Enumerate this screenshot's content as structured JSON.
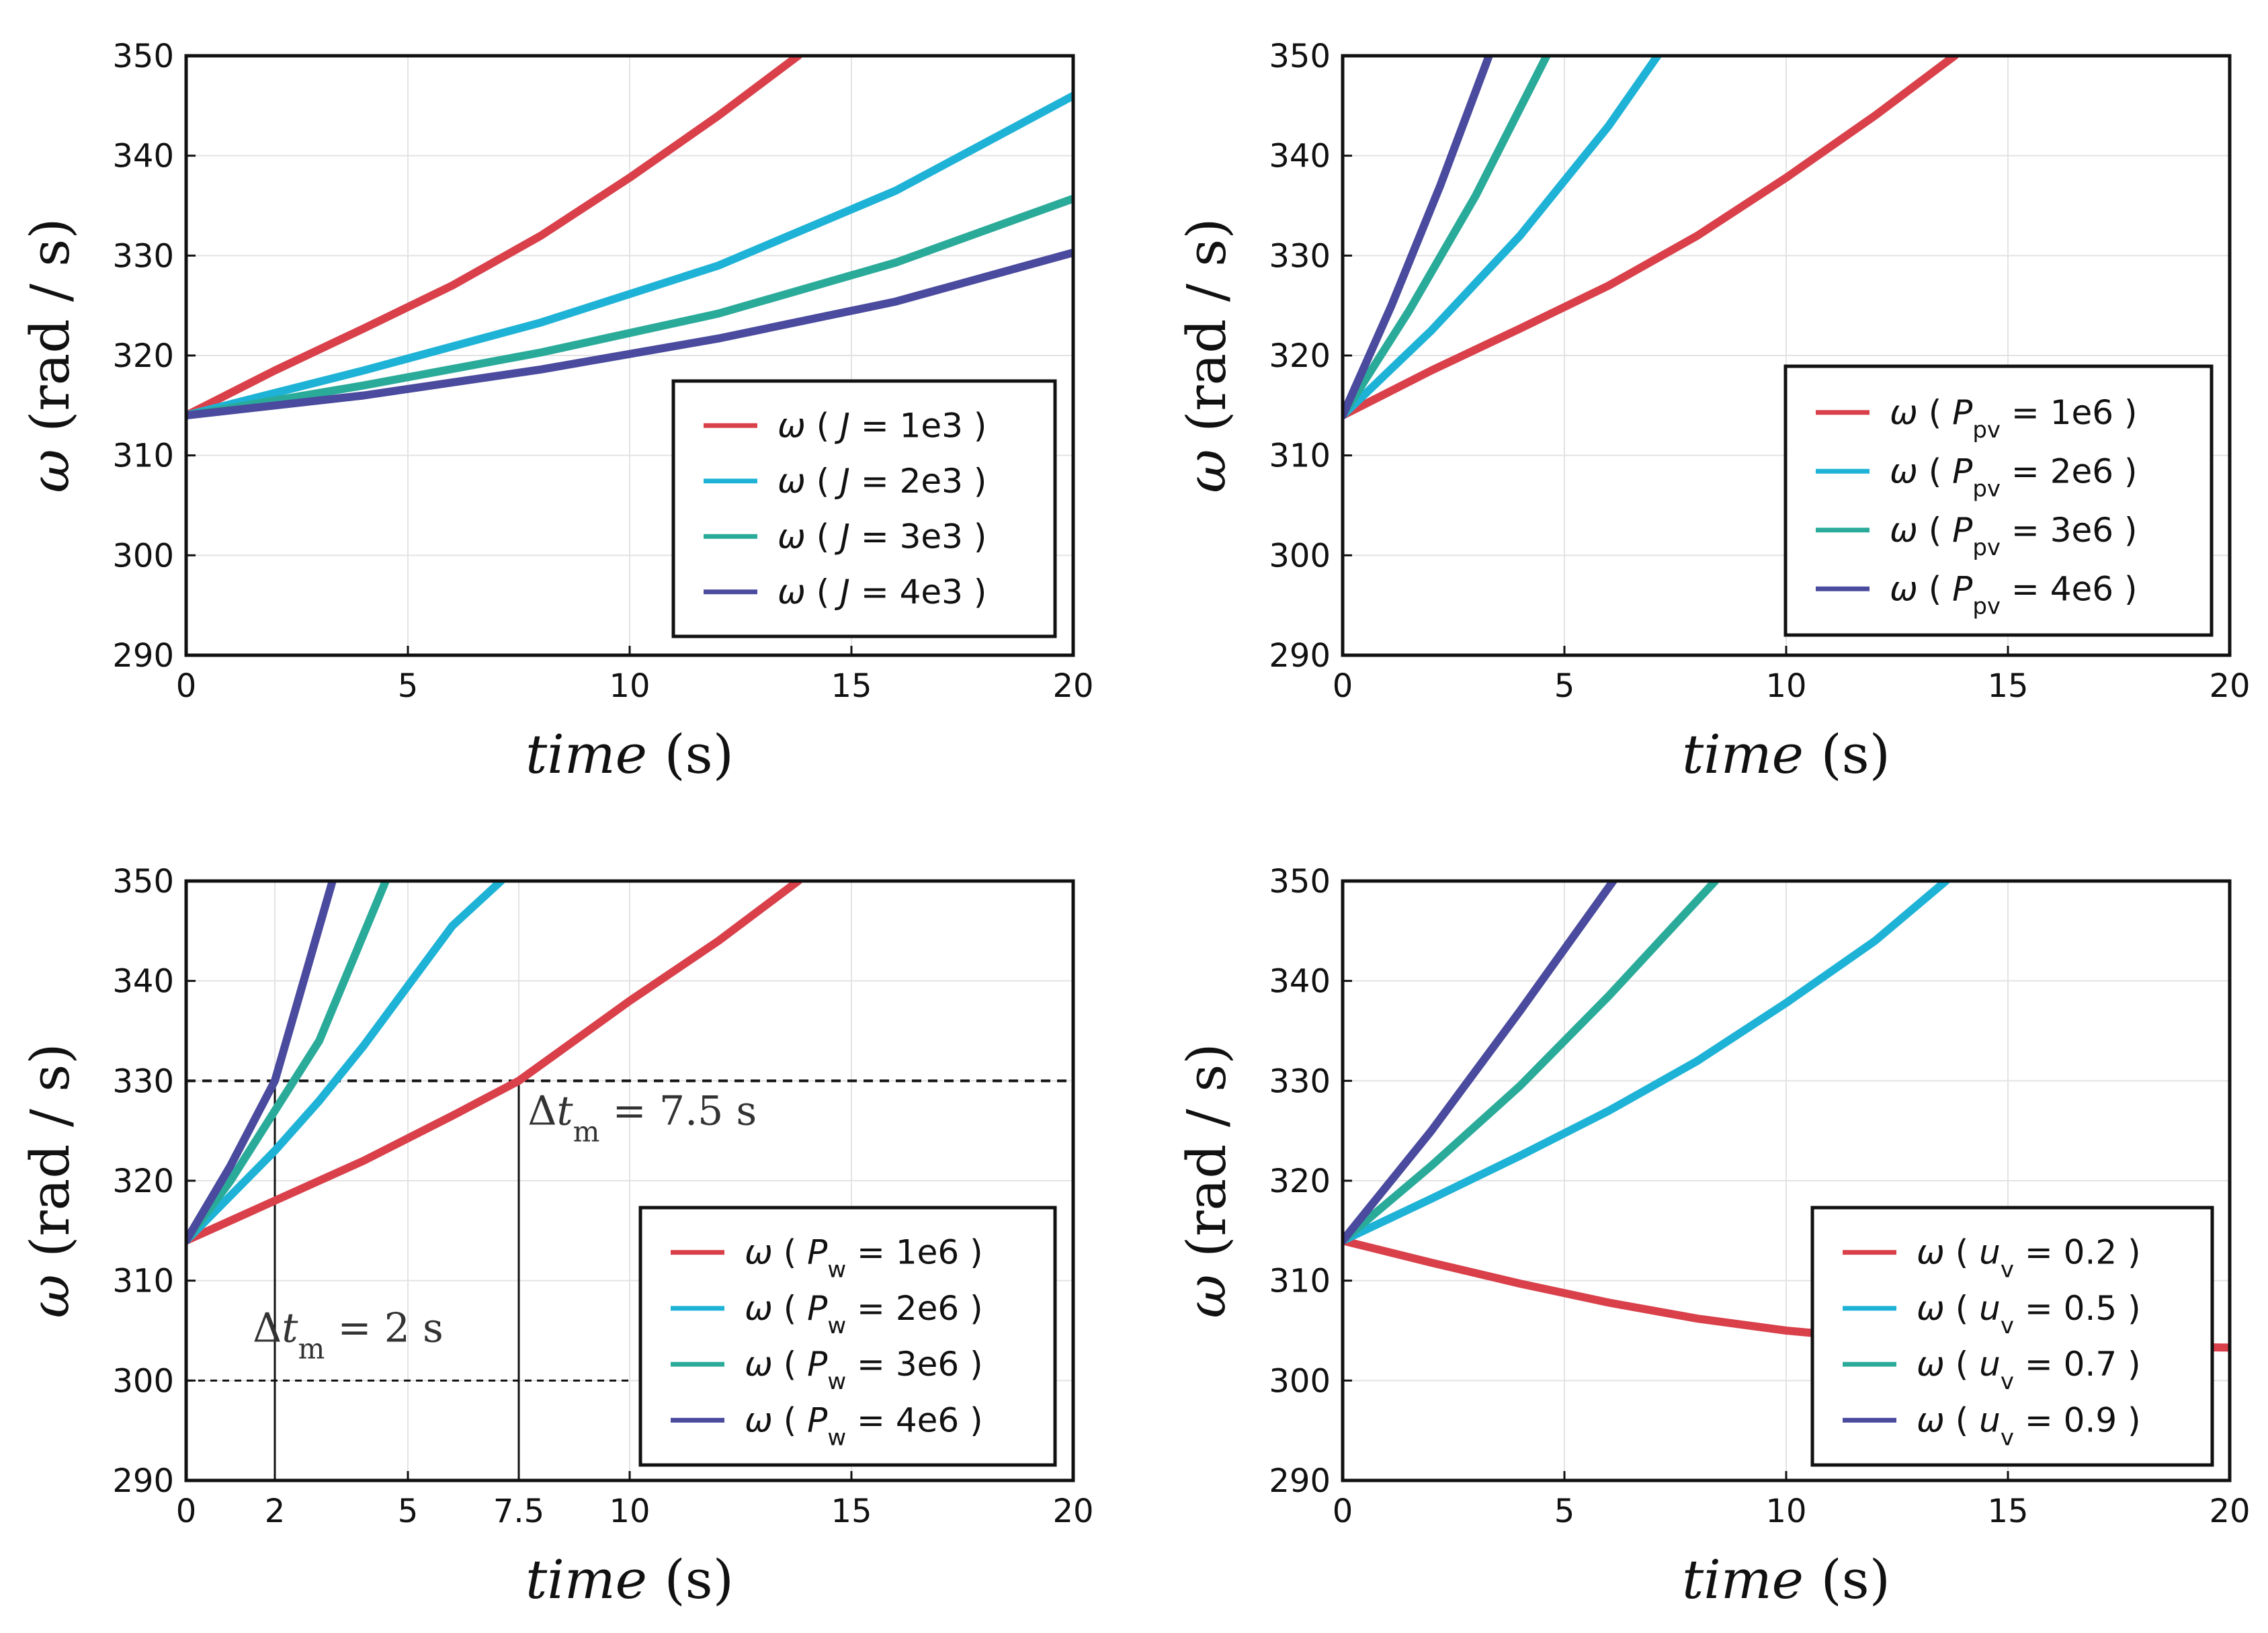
{
  "chart_data": [
    {
      "type": "line",
      "xlabel": {
        "var": "time",
        "unit": " (s)"
      },
      "ylabel": {
        "var": "ω",
        "unit": " (rad / s)"
      },
      "xlim": [
        0,
        20
      ],
      "ylim": [
        290,
        350
      ],
      "xticks": [
        0,
        5,
        10,
        15,
        20
      ],
      "yticks": [
        290,
        300,
        310,
        320,
        330,
        340,
        350
      ],
      "grid": true,
      "legend_position": "lower-right",
      "series": [
        {
          "sym": "ω",
          "open": " ( ",
          "pre": "",
          "param": "J",
          "sub": "",
          "post": " = 1e3",
          "close": " )",
          "color": "#d9404a",
          "x": [
            0,
            2,
            4,
            6,
            8,
            10,
            12,
            13.8
          ],
          "y": [
            314,
            318.5,
            322.7,
            327,
            332,
            337.8,
            344,
            350
          ]
        },
        {
          "sym": "ω",
          "open": " ( ",
          "pre": "",
          "param": "J",
          "sub": "",
          "post": " = 2e3",
          "close": " )",
          "color": "#1eb3d6",
          "x": [
            0,
            4,
            8,
            12,
            16,
            20
          ],
          "y": [
            314,
            318.5,
            323.3,
            329,
            336.5,
            346
          ]
        },
        {
          "sym": "ω",
          "open": " ( ",
          "pre": "",
          "param": "J",
          "sub": "",
          "post": " = 3e3",
          "close": " )",
          "color": "#2aab9a",
          "x": [
            0,
            4,
            8,
            12,
            16,
            20
          ],
          "y": [
            314,
            317,
            320.3,
            324.2,
            329.3,
            335.7
          ]
        },
        {
          "sym": "ω",
          "open": " ( ",
          "pre": "",
          "param": "J",
          "sub": "",
          "post": " = 4e3",
          "close": " )",
          "color": "#4a4a9e",
          "x": [
            0,
            4,
            8,
            12,
            16,
            20
          ],
          "y": [
            314,
            316,
            318.6,
            321.7,
            325.4,
            330.3
          ]
        }
      ]
    },
    {
      "type": "line",
      "xlabel": {
        "var": "time",
        "unit": " (s)"
      },
      "ylabel": {
        "var": "ω",
        "unit": " (rad / s)"
      },
      "xlim": [
        0,
        20
      ],
      "ylim": [
        290,
        350
      ],
      "xticks": [
        0,
        5,
        10,
        15,
        20
      ],
      "yticks": [
        290,
        300,
        310,
        320,
        330,
        340,
        350
      ],
      "grid": true,
      "legend_position": "lower-right",
      "series": [
        {
          "sym": "ω",
          "open": " ( ",
          "pre": "",
          "param": "P",
          "sub": "pv",
          "post": " = 1e6",
          "close": " )",
          "color": "#d9404a",
          "x": [
            0,
            2,
            4,
            6,
            8,
            10,
            12,
            13.8
          ],
          "y": [
            314,
            318.5,
            322.7,
            327,
            332,
            337.8,
            344,
            350
          ]
        },
        {
          "sym": "ω",
          "open": " ( ",
          "pre": "",
          "param": "P",
          "sub": "pv",
          "post": " = 2e6",
          "close": " )",
          "color": "#1eb3d6",
          "x": [
            0,
            2,
            4,
            6,
            7.1
          ],
          "y": [
            314,
            322.5,
            332,
            343,
            350
          ]
        },
        {
          "sym": "ω",
          "open": " ( ",
          "pre": "",
          "param": "P",
          "sub": "pv",
          "post": " = 3e6",
          "close": " )",
          "color": "#2aab9a",
          "x": [
            0,
            1.5,
            3,
            4.6
          ],
          "y": [
            314,
            324.5,
            336,
            350
          ]
        },
        {
          "sym": "ω",
          "open": " ( ",
          "pre": "",
          "param": "P",
          "sub": "pv",
          "post": " = 4e6",
          "close": " )",
          "color": "#4a4a9e",
          "x": [
            0,
            1.1,
            2.2,
            3.3
          ],
          "y": [
            314,
            325,
            337,
            350
          ]
        }
      ]
    },
    {
      "type": "line",
      "xlabel": {
        "var": "time",
        "unit": " (s)"
      },
      "ylabel": {
        "var": "ω",
        "unit": " (rad / s)"
      },
      "xlim": [
        0,
        20
      ],
      "ylim": [
        290,
        350
      ],
      "xticks": [
        0,
        2,
        5,
        7.5,
        10,
        15,
        20
      ],
      "xticklabels": [
        "0",
        "2",
        "5",
        "7.5",
        "10",
        "15",
        "20"
      ],
      "yticks": [
        290,
        300,
        310,
        320,
        330,
        340,
        350
      ],
      "grid": true,
      "legend_position": "lower-right",
      "series": [
        {
          "sym": "ω",
          "open": " ( ",
          "pre": "",
          "param": "P",
          "sub": "w",
          "post": " = 1e6",
          "close": " )",
          "color": "#d9404a",
          "x": [
            0,
            2,
            4,
            6,
            7.5,
            10,
            12,
            13.8
          ],
          "y": [
            314,
            318,
            322,
            326.5,
            330,
            338,
            344,
            350
          ]
        },
        {
          "sym": "ω",
          "open": " ( ",
          "pre": "",
          "param": "P",
          "sub": "w",
          "post": " = 2e6",
          "close": " )",
          "color": "#1eb3d6",
          "x": [
            0,
            1,
            2,
            3,
            4,
            5,
            6,
            7.1
          ],
          "y": [
            314,
            318.5,
            323,
            328,
            333.5,
            339.5,
            345.5,
            350
          ]
        },
        {
          "sym": "ω",
          "open": " ( ",
          "pre": "",
          "param": "P",
          "sub": "w",
          "post": " = 3e6",
          "close": " )",
          "color": "#2aab9a",
          "x": [
            0,
            1,
            2,
            3,
            4.5
          ],
          "y": [
            314,
            320,
            327,
            334,
            350
          ]
        },
        {
          "sym": "ω",
          "open": " ( ",
          "pre": "",
          "param": "P",
          "sub": "w",
          "post": " = 4e6",
          "close": " )",
          "color": "#4a4a9e",
          "x": [
            0,
            1,
            2,
            3.3
          ],
          "y": [
            314,
            321.5,
            330,
            350
          ]
        }
      ],
      "annotations": {
        "hlines": [
          {
            "y": 330,
            "style": "dashed",
            "x_from": 0,
            "x_to": 20
          },
          {
            "y": 300,
            "style": "dashed-thin",
            "x_from": 0,
            "x_to": 10
          }
        ],
        "vlines": [
          {
            "x": 2,
            "y_from": 290,
            "y_to": 330
          },
          {
            "x": 7.5,
            "y_from": 290,
            "y_to": 330
          }
        ],
        "labels": [
          {
            "delta": "Δ",
            "var": "t",
            "sub": "m",
            "post": " = 7.5 s",
            "x": 7.7,
            "y": 325.6
          },
          {
            "delta": "Δ",
            "var": "t",
            "sub": "m",
            "post": " = 2 s",
            "x": 1.5,
            "y": 303.9
          }
        ]
      }
    },
    {
      "type": "line",
      "xlabel": {
        "var": "time",
        "unit": " (s)"
      },
      "ylabel": {
        "var": "ω",
        "unit": " (rad / s)"
      },
      "xlim": [
        0,
        20
      ],
      "ylim": [
        290,
        350
      ],
      "xticks": [
        0,
        5,
        10,
        15,
        20
      ],
      "yticks": [
        290,
        300,
        310,
        320,
        330,
        340,
        350
      ],
      "grid": true,
      "legend_position": "lower-right",
      "series": [
        {
          "sym": "ω",
          "open": " ( ",
          "pre": "",
          "param": "u",
          "sub": "v",
          "post": " = 0.2",
          "close": " )",
          "color": "#d9404a",
          "x": [
            0,
            2,
            4,
            6,
            8,
            10,
            12,
            14,
            16,
            18,
            20
          ],
          "y": [
            314,
            311.8,
            309.7,
            307.8,
            306.2,
            305,
            304.2,
            303.8,
            303.5,
            303.4,
            303.3
          ]
        },
        {
          "sym": "ω",
          "open": " ( ",
          "pre": "",
          "param": "u",
          "sub": "v",
          "post": " = 0.5",
          "close": " )",
          "color": "#1eb3d6",
          "x": [
            0,
            2,
            4,
            6,
            8,
            10,
            12,
            13.6
          ],
          "y": [
            314,
            318.2,
            322.5,
            327,
            332,
            337.8,
            344,
            350
          ]
        },
        {
          "sym": "ω",
          "open": " ( ",
          "pre": "",
          "param": "u",
          "sub": "v",
          "post": " = 0.7",
          "close": " )",
          "color": "#2aab9a",
          "x": [
            0,
            2,
            4,
            6,
            8.4
          ],
          "y": [
            314,
            321.5,
            329.5,
            338.5,
            350
          ]
        },
        {
          "sym": "ω",
          "open": " ( ",
          "pre": "",
          "param": "u",
          "sub": "v",
          "post": " = 0.9",
          "close": " )",
          "color": "#4a4a9e",
          "x": [
            0,
            2,
            4,
            6.1
          ],
          "y": [
            314,
            325,
            337,
            350
          ]
        }
      ]
    }
  ]
}
